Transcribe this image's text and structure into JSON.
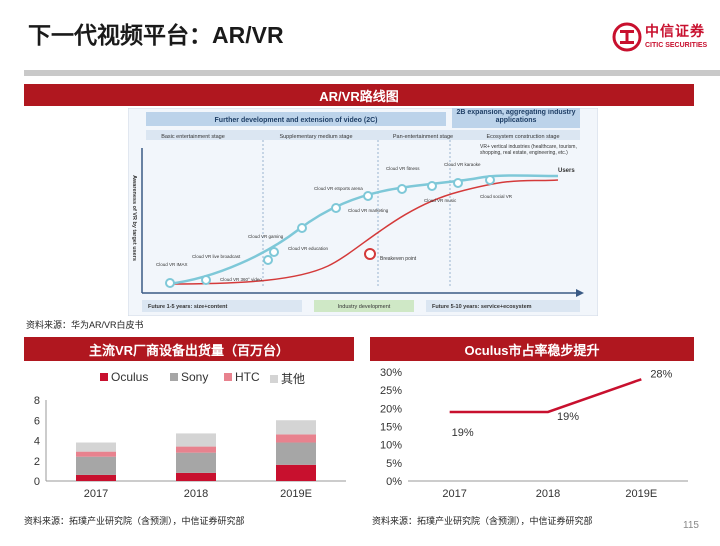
{
  "header": {
    "title": "下一代视频平台：AR/VR"
  },
  "logo": {
    "name_cn": "中信证券",
    "name_en": "CITIC SECURITIES",
    "color": "#c8102e"
  },
  "roadmap": {
    "section_title": "AR/VR路线图",
    "top_band": "Further development and extension of video (2C)",
    "top_band_right": "2B expansion, aggregating industry applications",
    "stages": [
      "Basic entertainment stage",
      "Supplementary medium stage",
      "Pan-entertainment stage",
      "Ecosystem construction stage"
    ],
    "y_axis_label": "Awareness of VR by target users",
    "points": [
      {
        "label": "Cloud VR IMAX"
      },
      {
        "label": "Cloud VR live broadcast"
      },
      {
        "label": "Cloud VR 360° video"
      },
      {
        "label": "Cloud VR gaming"
      },
      {
        "label": "Cloud VR education"
      },
      {
        "label": "Cloud VR eSports arena"
      },
      {
        "label": "Cloud VR marketing"
      },
      {
        "label": "Cloud VR fitness"
      },
      {
        "label": "Cloud VR music"
      },
      {
        "label": "Cloud VR karaoke"
      },
      {
        "label": "Cloud social VR"
      }
    ],
    "right_box": "VR+ vertical industries (healthcare, tourism, shopping, real estate, engineering, etc.)",
    "users_label": "Users",
    "breakeven_label": "Breakeven point",
    "bottom_left": "Future 1-5 years: size+content",
    "bottom_mid": "Industry development",
    "bottom_right": "Future 5-10 years: service+ecosystem",
    "source": "资料来源：华为AR/VR白皮书"
  },
  "shipments": {
    "section_title": "主流VR厂商设备出货量（百万台）",
    "source": "资料来源：拓璞产业研究院（含预测），中信证券研究部",
    "chart_data": {
      "type": "bar",
      "stacked": true,
      "categories": [
        "2017",
        "2018",
        "2019E"
      ],
      "series": [
        {
          "name": "Oculus",
          "values": [
            0.6,
            0.8,
            1.6
          ],
          "color": "#c8102e"
        },
        {
          "name": "Sony",
          "values": [
            1.8,
            2.0,
            2.2
          ],
          "color": "#a6a6a6"
        },
        {
          "name": "HTC",
          "values": [
            0.5,
            0.6,
            0.8
          ],
          "color": "#e8828e"
        },
        {
          "name": "其他",
          "values": [
            0.9,
            1.3,
            1.4
          ],
          "color": "#d4d4d4"
        }
      ],
      "yticks": [
        "0",
        "2",
        "4",
        "6",
        "8"
      ],
      "ylim": [
        0,
        8
      ],
      "legend": "top"
    }
  },
  "oculus_share": {
    "section_title": "Oculus市占率稳步提升",
    "source": "资料来源：拓璞产业研究院（含预测），中信证券研究部",
    "chart_data": {
      "type": "line",
      "categories": [
        "2017",
        "2018",
        "2019E"
      ],
      "series": [
        {
          "values": [
            19,
            19,
            28
          ],
          "labels": [
            "19%",
            "19%",
            "28%"
          ],
          "color": "#c8102e"
        }
      ],
      "yticks": [
        "0%",
        "5%",
        "10%",
        "15%",
        "20%",
        "25%",
        "30%"
      ],
      "ylim": [
        0,
        30
      ]
    }
  },
  "page_number": "115"
}
